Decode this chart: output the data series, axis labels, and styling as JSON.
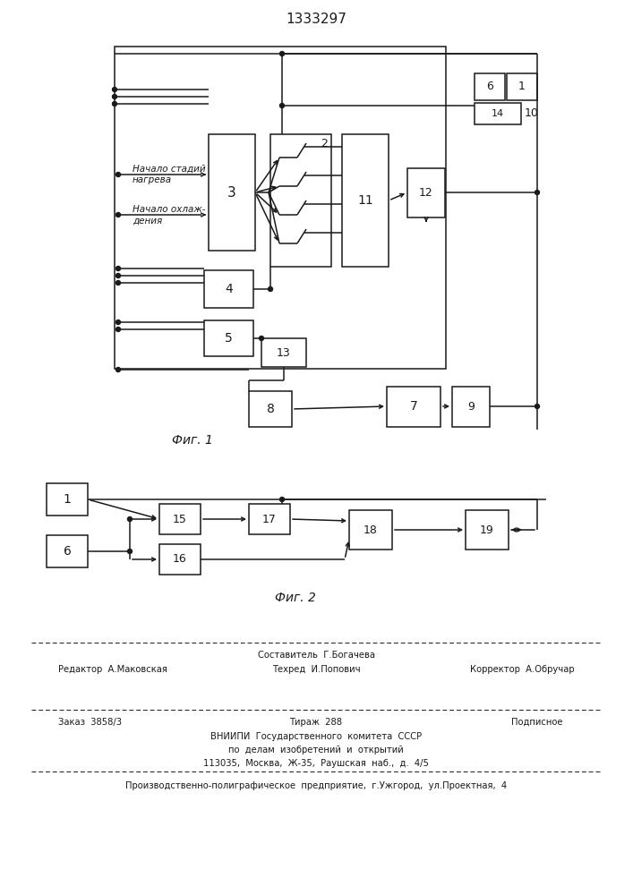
{
  "title": "1333297",
  "fig1_label": "Фиг. 1",
  "fig2_label": "Фиг. 2",
  "bg": "#ffffff",
  "lc": "#1a1a1a",
  "footer": {
    "l1c": "Составитель  Г.Богачева",
    "l2l": "Редактор  А.Маковская",
    "l2c": "Техред  И.Попович",
    "l2r": "Корректор  А.Обручар",
    "l3l": "Заказ  3858/3",
    "l3c": "Тираж  288",
    "l3r": "Подписное",
    "l4": "ВНИИПИ  Государственного  комитета  СССР",
    "l5": "по  делам  изобретений  и  открытий",
    "l6": "113035,  Москва,  Ж-35,  Раушская  наб.,  д.  4/5",
    "l7": "Производственно-полиграфическое  предприятие,  г.Ужгород,  ул.Проектная,  4"
  }
}
